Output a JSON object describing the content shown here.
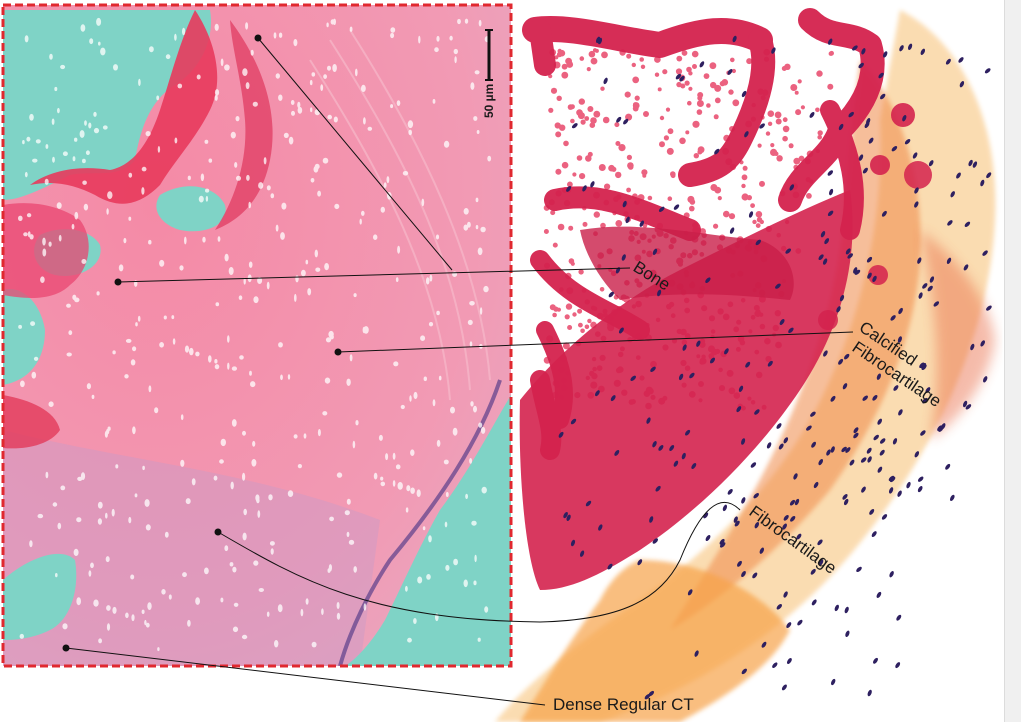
{
  "figure": {
    "scale_bar": "50 µm",
    "labels": {
      "bone": "Bone",
      "calcified_line1": "Calcified",
      "calcified_line2": "Fibrocartilage",
      "fibrocartilage": "Fibrocartilage",
      "dense": "Dense Regular CT"
    }
  },
  "colors": {
    "micrograph_pink": "#f27f9e",
    "bone_red": "#e83a5c",
    "marrow_teal": "#7fd3c6",
    "frame_red": "#e0282f",
    "illus_bone": "#d4224e",
    "calcified_orange": "#f08a4a",
    "fibro_orange": "#f6b255",
    "nucleus": "#3a2a6b"
  }
}
